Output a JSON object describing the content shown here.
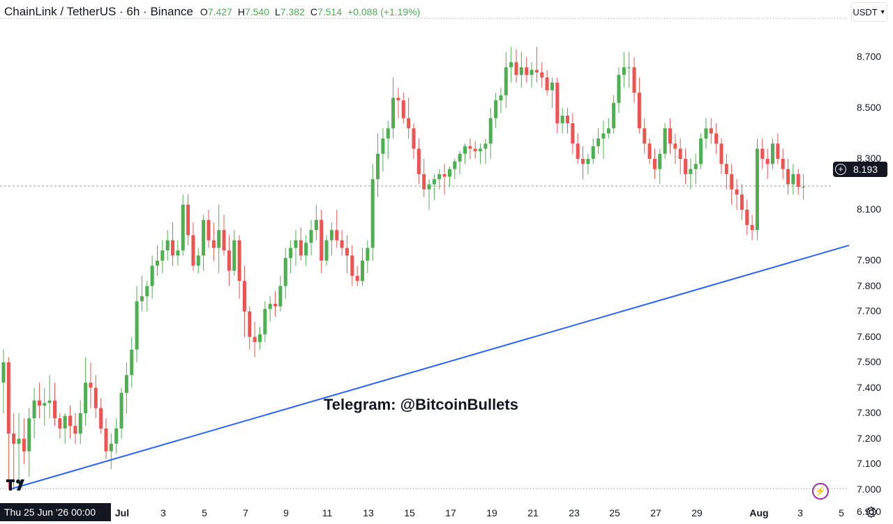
{
  "header": {
    "symbol": "ChainLink / TetherUS · 6h · Binance",
    "open_label": "O",
    "open": "7.427",
    "high_label": "H",
    "high": "7.540",
    "low_label": "L",
    "low": "7.382",
    "close_label": "C",
    "close": "7.514",
    "change": "+0.088 (+1.19%)"
  },
  "currency_button": {
    "label": "USDT",
    "icon": "chevron-down-icon"
  },
  "price_axis": [
    "8.700",
    "8.500",
    "8.300",
    "8.100",
    "7.900",
    "7.800",
    "7.700",
    "7.600",
    "7.500",
    "7.400",
    "7.300",
    "7.200",
    "7.100",
    "7.000",
    "6.910"
  ],
  "last_price": "8.193",
  "time_axis": [
    "Jul",
    "3",
    "5",
    "7",
    "9",
    "11",
    "13",
    "15",
    "17",
    "19",
    "21",
    "23",
    "25",
    "27",
    "29",
    "Aug",
    "3",
    "5"
  ],
  "crosshair_time": "Thu 25 Jun '26   00:00",
  "watermark": "Telegram: @BitcoinBullets",
  "colors": {
    "up": "#4caf50",
    "down": "#ef5350",
    "trendline": "#2962ff",
    "text": "#131722"
  },
  "chart_data": {
    "type": "candlestick",
    "interval": "6h",
    "ylim": [
      6.91,
      8.85
    ],
    "candles": [
      [
        7.42,
        7.55,
        7.3,
        7.5
      ],
      [
        7.5,
        7.52,
        7.0,
        7.22
      ],
      [
        7.22,
        7.3,
        7.0,
        7.18
      ],
      [
        7.18,
        7.3,
        7.02,
        7.2
      ],
      [
        7.2,
        7.28,
        7.1,
        7.15
      ],
      [
        7.15,
        7.32,
        7.05,
        7.28
      ],
      [
        7.28,
        7.4,
        7.2,
        7.35
      ],
      [
        7.35,
        7.42,
        7.28,
        7.33
      ],
      [
        7.33,
        7.4,
        7.25,
        7.34
      ],
      [
        7.34,
        7.45,
        7.28,
        7.35
      ],
      [
        7.35,
        7.42,
        7.25,
        7.28
      ],
      [
        7.28,
        7.3,
        7.2,
        7.24
      ],
      [
        7.24,
        7.3,
        7.18,
        7.29
      ],
      [
        7.29,
        7.33,
        7.2,
        7.25
      ],
      [
        7.25,
        7.3,
        7.18,
        7.22
      ],
      [
        7.22,
        7.35,
        7.18,
        7.3
      ],
      [
        7.3,
        7.52,
        7.25,
        7.42
      ],
      [
        7.42,
        7.5,
        7.32,
        7.4
      ],
      [
        7.4,
        7.45,
        7.28,
        7.32
      ],
      [
        7.32,
        7.36,
        7.22,
        7.24
      ],
      [
        7.24,
        7.28,
        7.12,
        7.15
      ],
      [
        7.15,
        7.22,
        7.08,
        7.18
      ],
      [
        7.18,
        7.28,
        7.14,
        7.24
      ],
      [
        7.24,
        7.4,
        7.2,
        7.38
      ],
      [
        7.38,
        7.5,
        7.3,
        7.45
      ],
      [
        7.45,
        7.6,
        7.4,
        7.55
      ],
      [
        7.55,
        7.8,
        7.5,
        7.74
      ],
      [
        7.74,
        7.84,
        7.7,
        7.76
      ],
      [
        7.76,
        7.82,
        7.7,
        7.8
      ],
      [
        7.8,
        7.92,
        7.75,
        7.88
      ],
      [
        7.88,
        7.96,
        7.84,
        7.9
      ],
      [
        7.9,
        7.98,
        7.85,
        7.94
      ],
      [
        7.94,
        8.02,
        7.9,
        7.98
      ],
      [
        7.98,
        8.05,
        7.88,
        7.92
      ],
      [
        7.92,
        7.98,
        7.88,
        7.94
      ],
      [
        7.94,
        8.16,
        7.92,
        8.12
      ],
      [
        8.12,
        8.16,
        7.96,
        8.0
      ],
      [
        8.0,
        8.05,
        7.86,
        7.88
      ],
      [
        7.88,
        7.95,
        7.85,
        7.92
      ],
      [
        7.92,
        8.08,
        7.86,
        8.06
      ],
      [
        8.06,
        8.1,
        7.95,
        7.98
      ],
      [
        7.98,
        8.05,
        7.9,
        7.95
      ],
      [
        7.95,
        8.12,
        7.85,
        8.02
      ],
      [
        8.02,
        8.08,
        7.92,
        7.94
      ],
      [
        7.94,
        8.0,
        7.8,
        7.86
      ],
      [
        7.86,
        8.02,
        7.84,
        7.98
      ],
      [
        7.98,
        8.0,
        7.75,
        7.82
      ],
      [
        7.82,
        7.88,
        7.6,
        7.7
      ],
      [
        7.7,
        7.72,
        7.55,
        7.6
      ],
      [
        7.6,
        7.66,
        7.52,
        7.58
      ],
      [
        7.58,
        7.64,
        7.55,
        7.61
      ],
      [
        7.61,
        7.74,
        7.58,
        7.71
      ],
      [
        7.71,
        7.76,
        7.66,
        7.73
      ],
      [
        7.73,
        7.78,
        7.68,
        7.72
      ],
      [
        7.72,
        7.84,
        7.7,
        7.8
      ],
      [
        7.8,
        7.95,
        7.75,
        7.91
      ],
      [
        7.91,
        7.98,
        7.85,
        7.95
      ],
      [
        7.95,
        8.02,
        7.88,
        7.98
      ],
      [
        7.98,
        8.03,
        7.9,
        7.92
      ],
      [
        7.92,
        8.0,
        7.88,
        7.97
      ],
      [
        7.97,
        8.06,
        7.92,
        8.02
      ],
      [
        8.02,
        8.12,
        7.98,
        8.06
      ],
      [
        8.06,
        8.1,
        7.85,
        7.9
      ],
      [
        7.9,
        8.0,
        7.88,
        7.98
      ],
      [
        7.98,
        8.05,
        7.92,
        8.02
      ],
      [
        8.02,
        8.1,
        7.95,
        7.98
      ],
      [
        7.98,
        8.02,
        7.92,
        7.95
      ],
      [
        7.95,
        8.0,
        7.85,
        7.92
      ],
      [
        7.92,
        7.96,
        7.8,
        7.84
      ],
      [
        7.84,
        7.88,
        7.8,
        7.82
      ],
      [
        7.82,
        7.95,
        7.8,
        7.9
      ],
      [
        7.9,
        7.98,
        7.85,
        7.95
      ],
      [
        7.95,
        8.28,
        7.9,
        8.22
      ],
      [
        8.22,
        8.4,
        8.15,
        8.32
      ],
      [
        8.32,
        8.42,
        8.25,
        8.38
      ],
      [
        8.38,
        8.45,
        8.3,
        8.42
      ],
      [
        8.42,
        8.62,
        8.38,
        8.54
      ],
      [
        8.54,
        8.58,
        8.46,
        8.53
      ],
      [
        8.53,
        8.56,
        8.44,
        8.46
      ],
      [
        8.46,
        8.54,
        8.38,
        8.42
      ],
      [
        8.42,
        8.44,
        8.3,
        8.34
      ],
      [
        8.34,
        8.38,
        8.2,
        8.24
      ],
      [
        8.24,
        8.3,
        8.15,
        8.18
      ],
      [
        8.18,
        8.22,
        8.1,
        8.2
      ],
      [
        8.2,
        8.24,
        8.14,
        8.22
      ],
      [
        8.22,
        8.26,
        8.18,
        8.24
      ],
      [
        8.24,
        8.28,
        8.16,
        8.23
      ],
      [
        8.23,
        8.27,
        8.19,
        8.26
      ],
      [
        8.26,
        8.3,
        8.22,
        8.29
      ],
      [
        8.29,
        8.33,
        8.24,
        8.32
      ],
      [
        8.32,
        8.36,
        8.28,
        8.35
      ],
      [
        8.35,
        8.38,
        8.3,
        8.34
      ],
      [
        8.34,
        8.37,
        8.3,
        8.33
      ],
      [
        8.33,
        8.36,
        8.28,
        8.34
      ],
      [
        8.34,
        8.38,
        8.28,
        8.36
      ],
      [
        8.36,
        8.5,
        8.3,
        8.46
      ],
      [
        8.46,
        8.56,
        8.42,
        8.53
      ],
      [
        8.53,
        8.58,
        8.48,
        8.55
      ],
      [
        8.55,
        8.72,
        8.5,
        8.66
      ],
      [
        8.66,
        8.74,
        8.6,
        8.68
      ],
      [
        8.68,
        8.73,
        8.6,
        8.63
      ],
      [
        8.63,
        8.72,
        8.58,
        8.66
      ],
      [
        8.66,
        8.7,
        8.6,
        8.63
      ],
      [
        8.63,
        8.68,
        8.58,
        8.65
      ],
      [
        8.65,
        8.74,
        8.6,
        8.64
      ],
      [
        8.64,
        8.68,
        8.58,
        8.62
      ],
      [
        8.62,
        8.65,
        8.55,
        8.57
      ],
      [
        8.57,
        8.62,
        8.5,
        8.6
      ],
      [
        8.6,
        8.62,
        8.4,
        8.44
      ],
      [
        8.44,
        8.5,
        8.4,
        8.47
      ],
      [
        8.47,
        8.5,
        8.4,
        8.44
      ],
      [
        8.44,
        8.48,
        8.32,
        8.36
      ],
      [
        8.36,
        8.4,
        8.28,
        8.3
      ],
      [
        8.3,
        8.35,
        8.22,
        8.28
      ],
      [
        8.28,
        8.32,
        8.24,
        8.3
      ],
      [
        8.3,
        8.38,
        8.28,
        8.35
      ],
      [
        8.35,
        8.42,
        8.32,
        8.38
      ],
      [
        8.38,
        8.45,
        8.3,
        8.4
      ],
      [
        8.4,
        8.46,
        8.38,
        8.42
      ],
      [
        8.42,
        8.55,
        8.4,
        8.52
      ],
      [
        8.52,
        8.66,
        8.48,
        8.63
      ],
      [
        8.63,
        8.72,
        8.58,
        8.66
      ],
      [
        8.66,
        8.72,
        8.58,
        8.66
      ],
      [
        8.66,
        8.7,
        8.52,
        8.56
      ],
      [
        8.56,
        8.62,
        8.4,
        8.42
      ],
      [
        8.42,
        8.46,
        8.32,
        8.36
      ],
      [
        8.36,
        8.38,
        8.28,
        8.3
      ],
      [
        8.3,
        8.34,
        8.22,
        8.26
      ],
      [
        8.26,
        8.34,
        8.2,
        8.32
      ],
      [
        8.32,
        8.44,
        8.3,
        8.42
      ],
      [
        8.42,
        8.46,
        8.32,
        8.36
      ],
      [
        8.36,
        8.4,
        8.28,
        8.34
      ],
      [
        8.34,
        8.38,
        8.24,
        8.3
      ],
      [
        8.3,
        8.34,
        8.2,
        8.24
      ],
      [
        8.24,
        8.3,
        8.18,
        8.26
      ],
      [
        8.26,
        8.32,
        8.2,
        8.28
      ],
      [
        8.28,
        8.4,
        8.26,
        8.38
      ],
      [
        8.38,
        8.46,
        8.34,
        8.42
      ],
      [
        8.42,
        8.46,
        8.36,
        8.4
      ],
      [
        8.4,
        8.44,
        8.32,
        8.36
      ],
      [
        8.36,
        8.38,
        8.24,
        8.28
      ],
      [
        8.28,
        8.32,
        8.18,
        8.24
      ],
      [
        8.24,
        8.28,
        8.12,
        8.18
      ],
      [
        8.18,
        8.22,
        8.1,
        8.16
      ],
      [
        8.16,
        8.2,
        8.06,
        8.1
      ],
      [
        8.1,
        8.14,
        8.0,
        8.04
      ],
      [
        8.04,
        8.08,
        7.98,
        8.02
      ],
      [
        8.02,
        8.38,
        7.98,
        8.34
      ],
      [
        8.34,
        8.38,
        8.26,
        8.3
      ],
      [
        8.3,
        8.34,
        8.22,
        8.28
      ],
      [
        8.28,
        8.38,
        8.26,
        8.36
      ],
      [
        8.36,
        8.4,
        8.28,
        8.3
      ],
      [
        8.3,
        8.34,
        8.22,
        8.26
      ],
      [
        8.26,
        8.3,
        8.16,
        8.2
      ],
      [
        8.2,
        8.28,
        8.16,
        8.24
      ],
      [
        8.24,
        8.26,
        8.16,
        8.19
      ],
      [
        8.19,
        8.24,
        8.14,
        8.19
      ]
    ],
    "trendline": {
      "start_price": 7.0,
      "end_price": 7.96,
      "start_index": 0,
      "end_index": 161
    },
    "reference_lines": [
      8.85,
      7.0
    ]
  }
}
